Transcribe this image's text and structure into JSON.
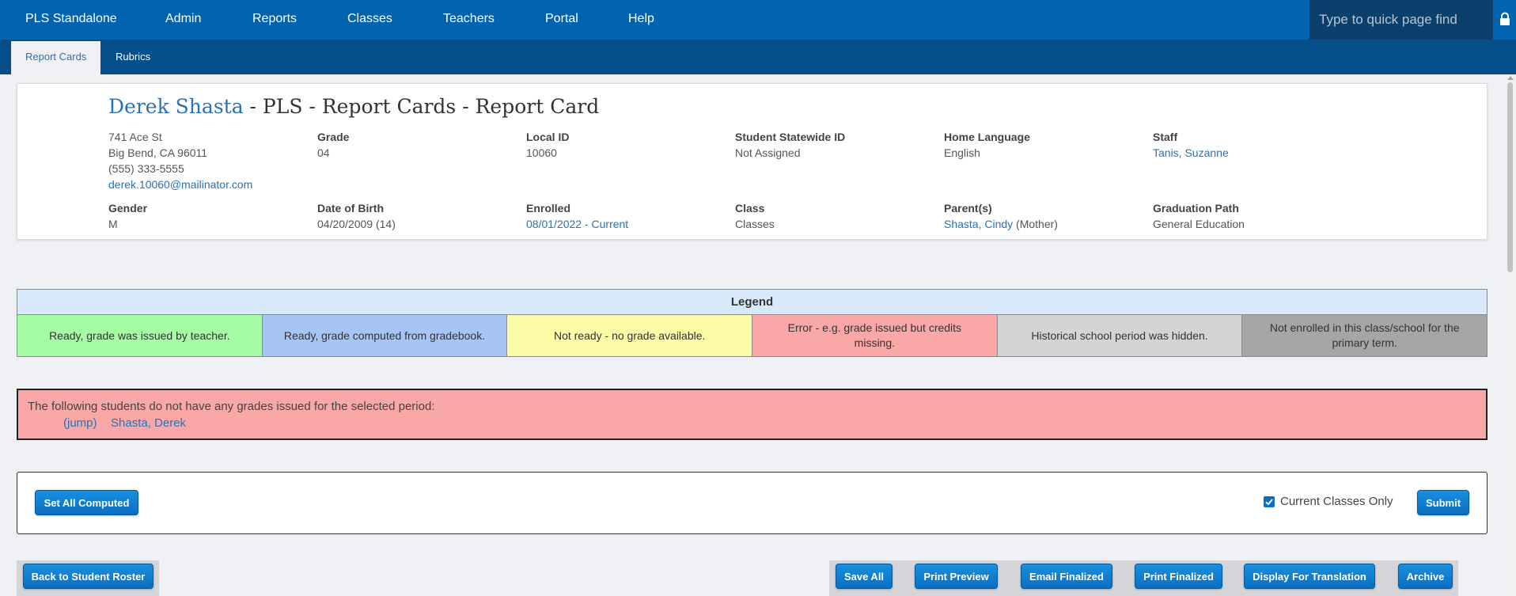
{
  "nav": {
    "brand": "PLS Standalone",
    "items": [
      "Admin",
      "Reports",
      "Classes",
      "Teachers",
      "Portal",
      "Help"
    ],
    "quickfind_placeholder": "Type to quick page find"
  },
  "subnav": {
    "tabs": [
      "Report Cards",
      "Rubrics"
    ],
    "active": "Report Cards"
  },
  "student": {
    "name": "Derek Shasta",
    "title_suffix": " - PLS - Report Cards - Report Card",
    "address1": "741 Ace St",
    "address2": "Big Bend, CA 96011",
    "phone": "(555) 333-5555",
    "email": "derek.10060@mailinator.com",
    "grade_label": "Grade",
    "grade": "04",
    "local_id_label": "Local ID",
    "local_id": "10060",
    "statewide_label": "Student Statewide ID",
    "statewide": "Not Assigned",
    "language_label": "Home Language",
    "language": "English",
    "staff_label": "Staff",
    "staff": "Tanis, Suzanne",
    "gender_label": "Gender",
    "gender": "M",
    "dob_label": "Date of Birth",
    "dob": "04/20/2009 (14)",
    "enrolled_label": "Enrolled",
    "enrolled": "08/01/2022 - Current",
    "class_label": "Class",
    "class": "Classes",
    "parents_label": "Parent(s)",
    "parent_name": "Shasta, Cindy",
    "parent_relation": " (Mother)",
    "grad_label": "Graduation Path",
    "grad": "General Education"
  },
  "legend": {
    "title": "Legend",
    "items": [
      {
        "text": "Ready, grade was issued by teacher.",
        "color": "#a5fca5"
      },
      {
        "text": "Ready, grade computed from gradebook.",
        "color": "#a6c4f6"
      },
      {
        "text": "Not ready - no grade available.",
        "color": "#fcfca6"
      },
      {
        "text": "Error - e.g. grade issued but credits missing.",
        "color": "#faa7a8"
      },
      {
        "text": "Historical school period was hidden.",
        "color": "#d4d4d4"
      },
      {
        "text": "Not enrolled in this class/school for the primary term.",
        "color": "#a6a6a6"
      }
    ]
  },
  "warning": {
    "message": "The following students do not have any grades issued for the selected period:",
    "jump": "(jump)",
    "student": "Shasta, Derek"
  },
  "actions": {
    "set_all_computed": "Set All Computed",
    "current_classes_only": "Current Classes Only",
    "current_classes_checked": true,
    "submit": "Submit"
  },
  "footer": {
    "back": "Back to Student Roster",
    "buttons": [
      "Save All",
      "Print Preview",
      "Email Finalized",
      "Print Finalized",
      "Display For Translation",
      "Archive"
    ]
  }
}
